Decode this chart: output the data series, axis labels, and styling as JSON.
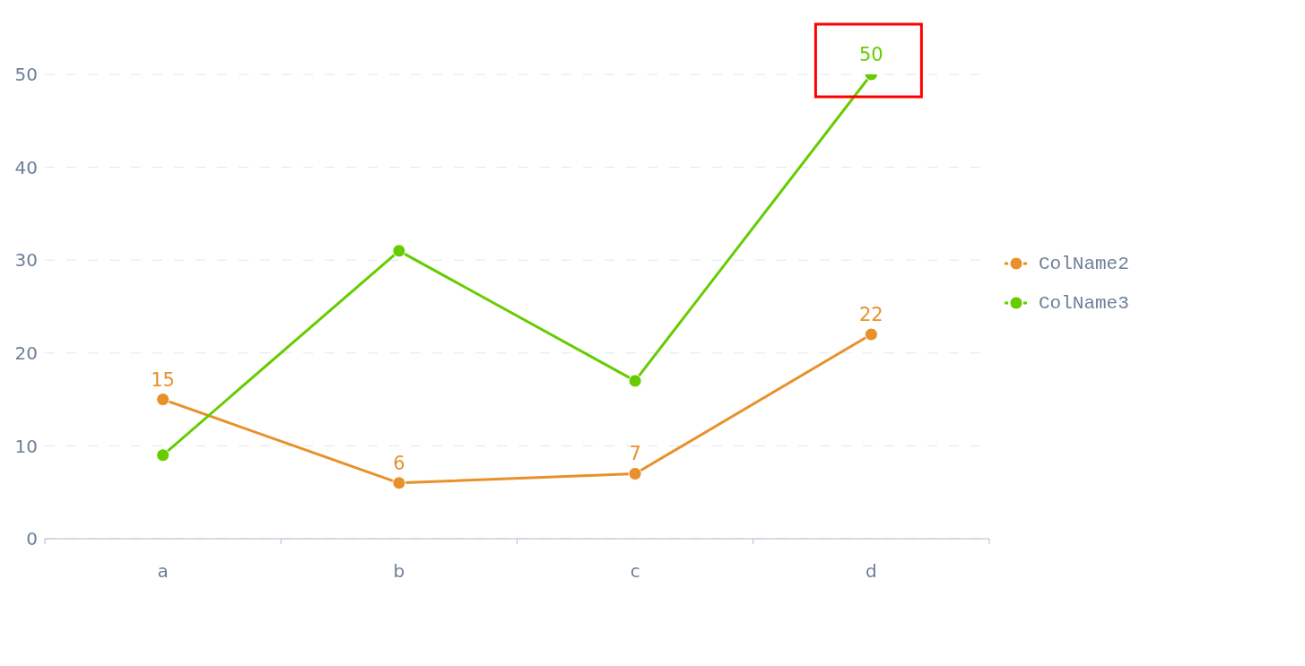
{
  "chart_data": {
    "type": "line",
    "categories": [
      "a",
      "b",
      "c",
      "d"
    ],
    "series": [
      {
        "name": "ColName2",
        "color": "#e8912b",
        "values": [
          15,
          6,
          7,
          22
        ],
        "value_labels": [
          "15",
          "6",
          "7",
          "22"
        ]
      },
      {
        "name": "ColName3",
        "color": "#66cc00",
        "values": [
          9,
          31,
          17,
          50
        ],
        "value_labels": [
          null,
          null,
          null,
          "50"
        ]
      }
    ],
    "ylim": [
      0,
      50
    ],
    "yticks": [
      0,
      10,
      20,
      30,
      40,
      50
    ],
    "grid": "y",
    "legend": "right",
    "marker": "circle",
    "line_style": "solid"
  }
}
